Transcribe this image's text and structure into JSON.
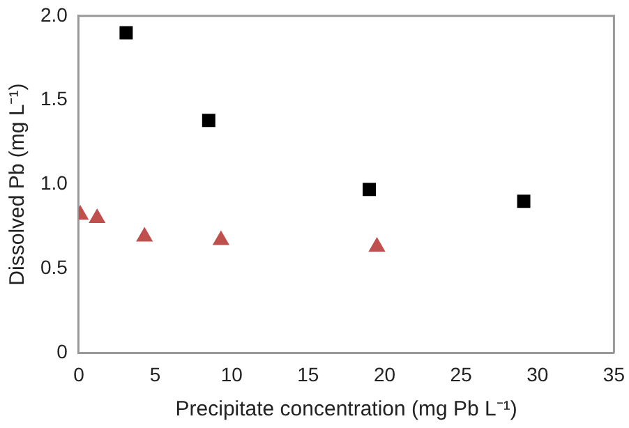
{
  "chart_data": {
    "type": "scatter",
    "xlabel": "Precipitate concentration (mg Pb L⁻¹)",
    "ylabel": "Dissolved Pb (mg L⁻¹)",
    "xlim": [
      0,
      35
    ],
    "xticks": [
      0,
      5,
      10,
      15,
      20,
      25,
      30,
      35
    ],
    "ylim": [
      0,
      2
    ],
    "yticks": [
      0,
      {
        "value": 0.5,
        "label": "0.5"
      },
      {
        "value": 1,
        "label": "1.0"
      },
      {
        "value": 1.5,
        "label": "1.5"
      },
      {
        "value": 2,
        "label": "2.0"
      }
    ],
    "grid": false,
    "legend": false,
    "series": [
      {
        "color": "#000000",
        "marker": "square",
        "x": [
          3.1,
          8.5,
          19.0,
          29.1
        ],
        "values": [
          1.9,
          1.38,
          0.97,
          0.9
        ]
      },
      {
        "color": "#c0504d",
        "marker": "triangle",
        "x": [
          0.1,
          1.2,
          4.3,
          9.3,
          19.5
        ],
        "values": [
          0.82,
          0.8,
          0.69,
          0.67,
          0.63
        ]
      }
    ]
  }
}
